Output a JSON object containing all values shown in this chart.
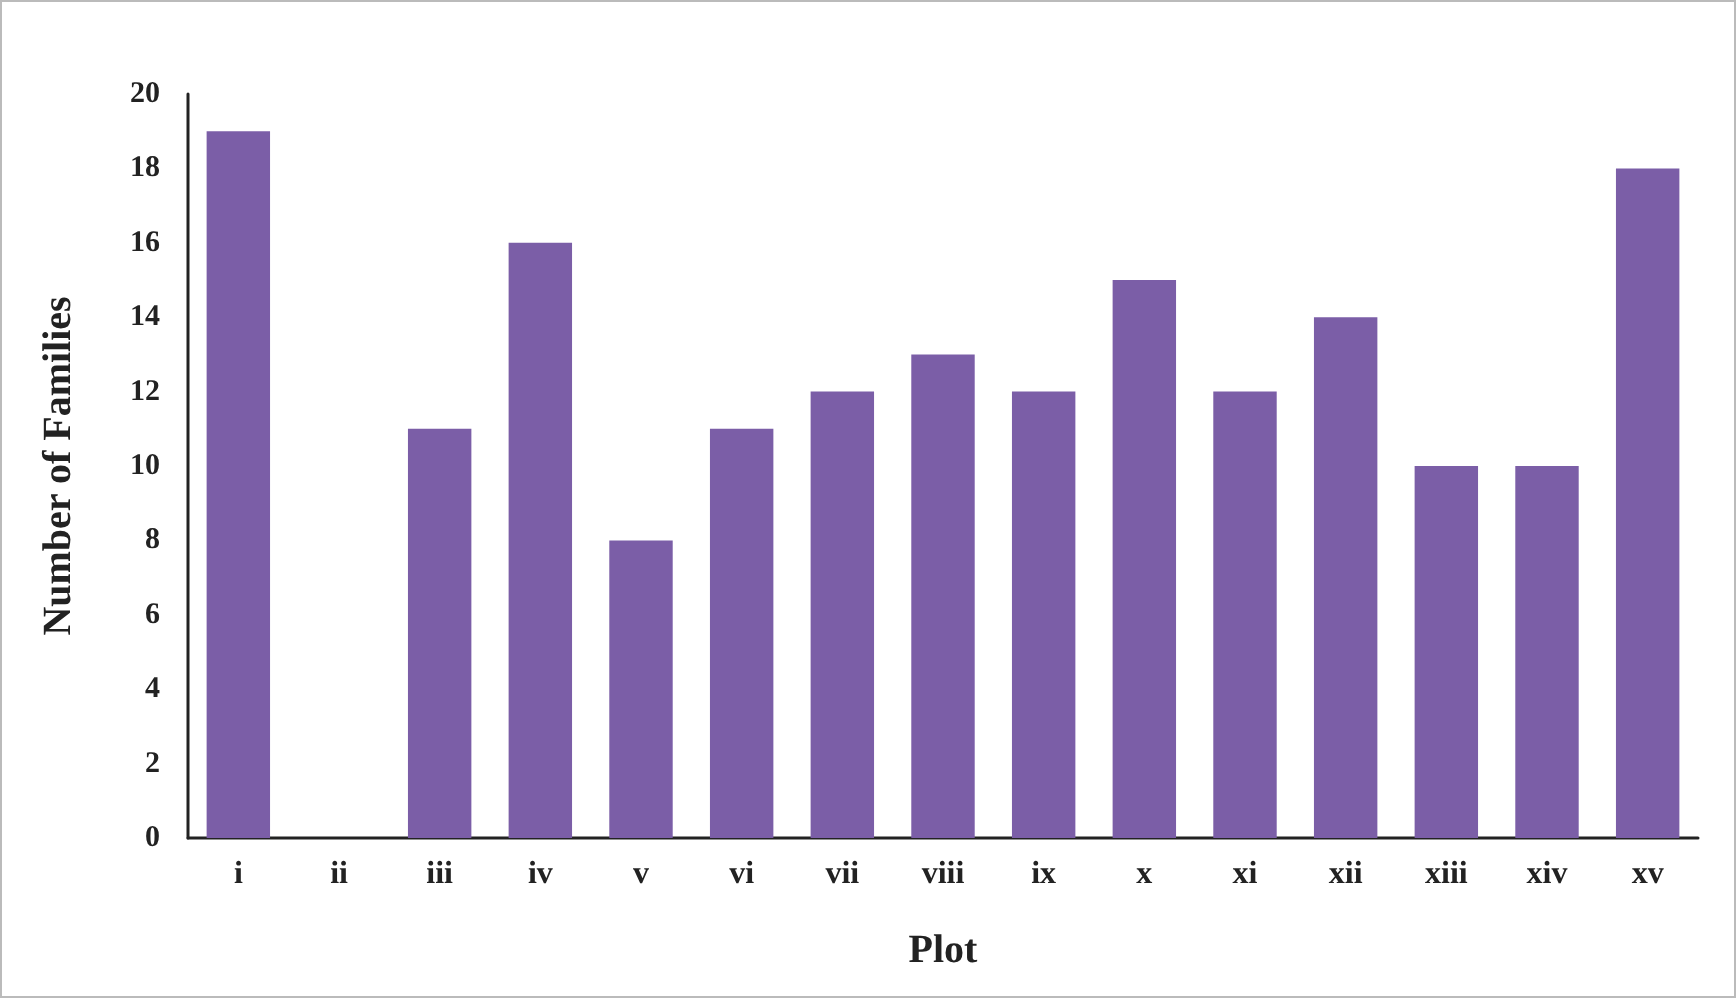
{
  "chart_data": {
    "type": "bar",
    "xlabel": "Plot",
    "ylabel": "Number of Families",
    "categories": [
      "i",
      "ii",
      "iii",
      "iv",
      "v",
      "vi",
      "vii",
      "viii",
      "ix",
      "x",
      "xi",
      "xii",
      "xiii",
      "xiv",
      "xv"
    ],
    "values": [
      19,
      0,
      11,
      16,
      8,
      11,
      12,
      13,
      12,
      15,
      12,
      14,
      10,
      10,
      18
    ],
    "color": "#7b5ea7",
    "ylim": [
      0,
      20
    ],
    "yticks": [
      0,
      2,
      4,
      6,
      8,
      10,
      12,
      14,
      16,
      18,
      20
    ],
    "grid": false
  }
}
